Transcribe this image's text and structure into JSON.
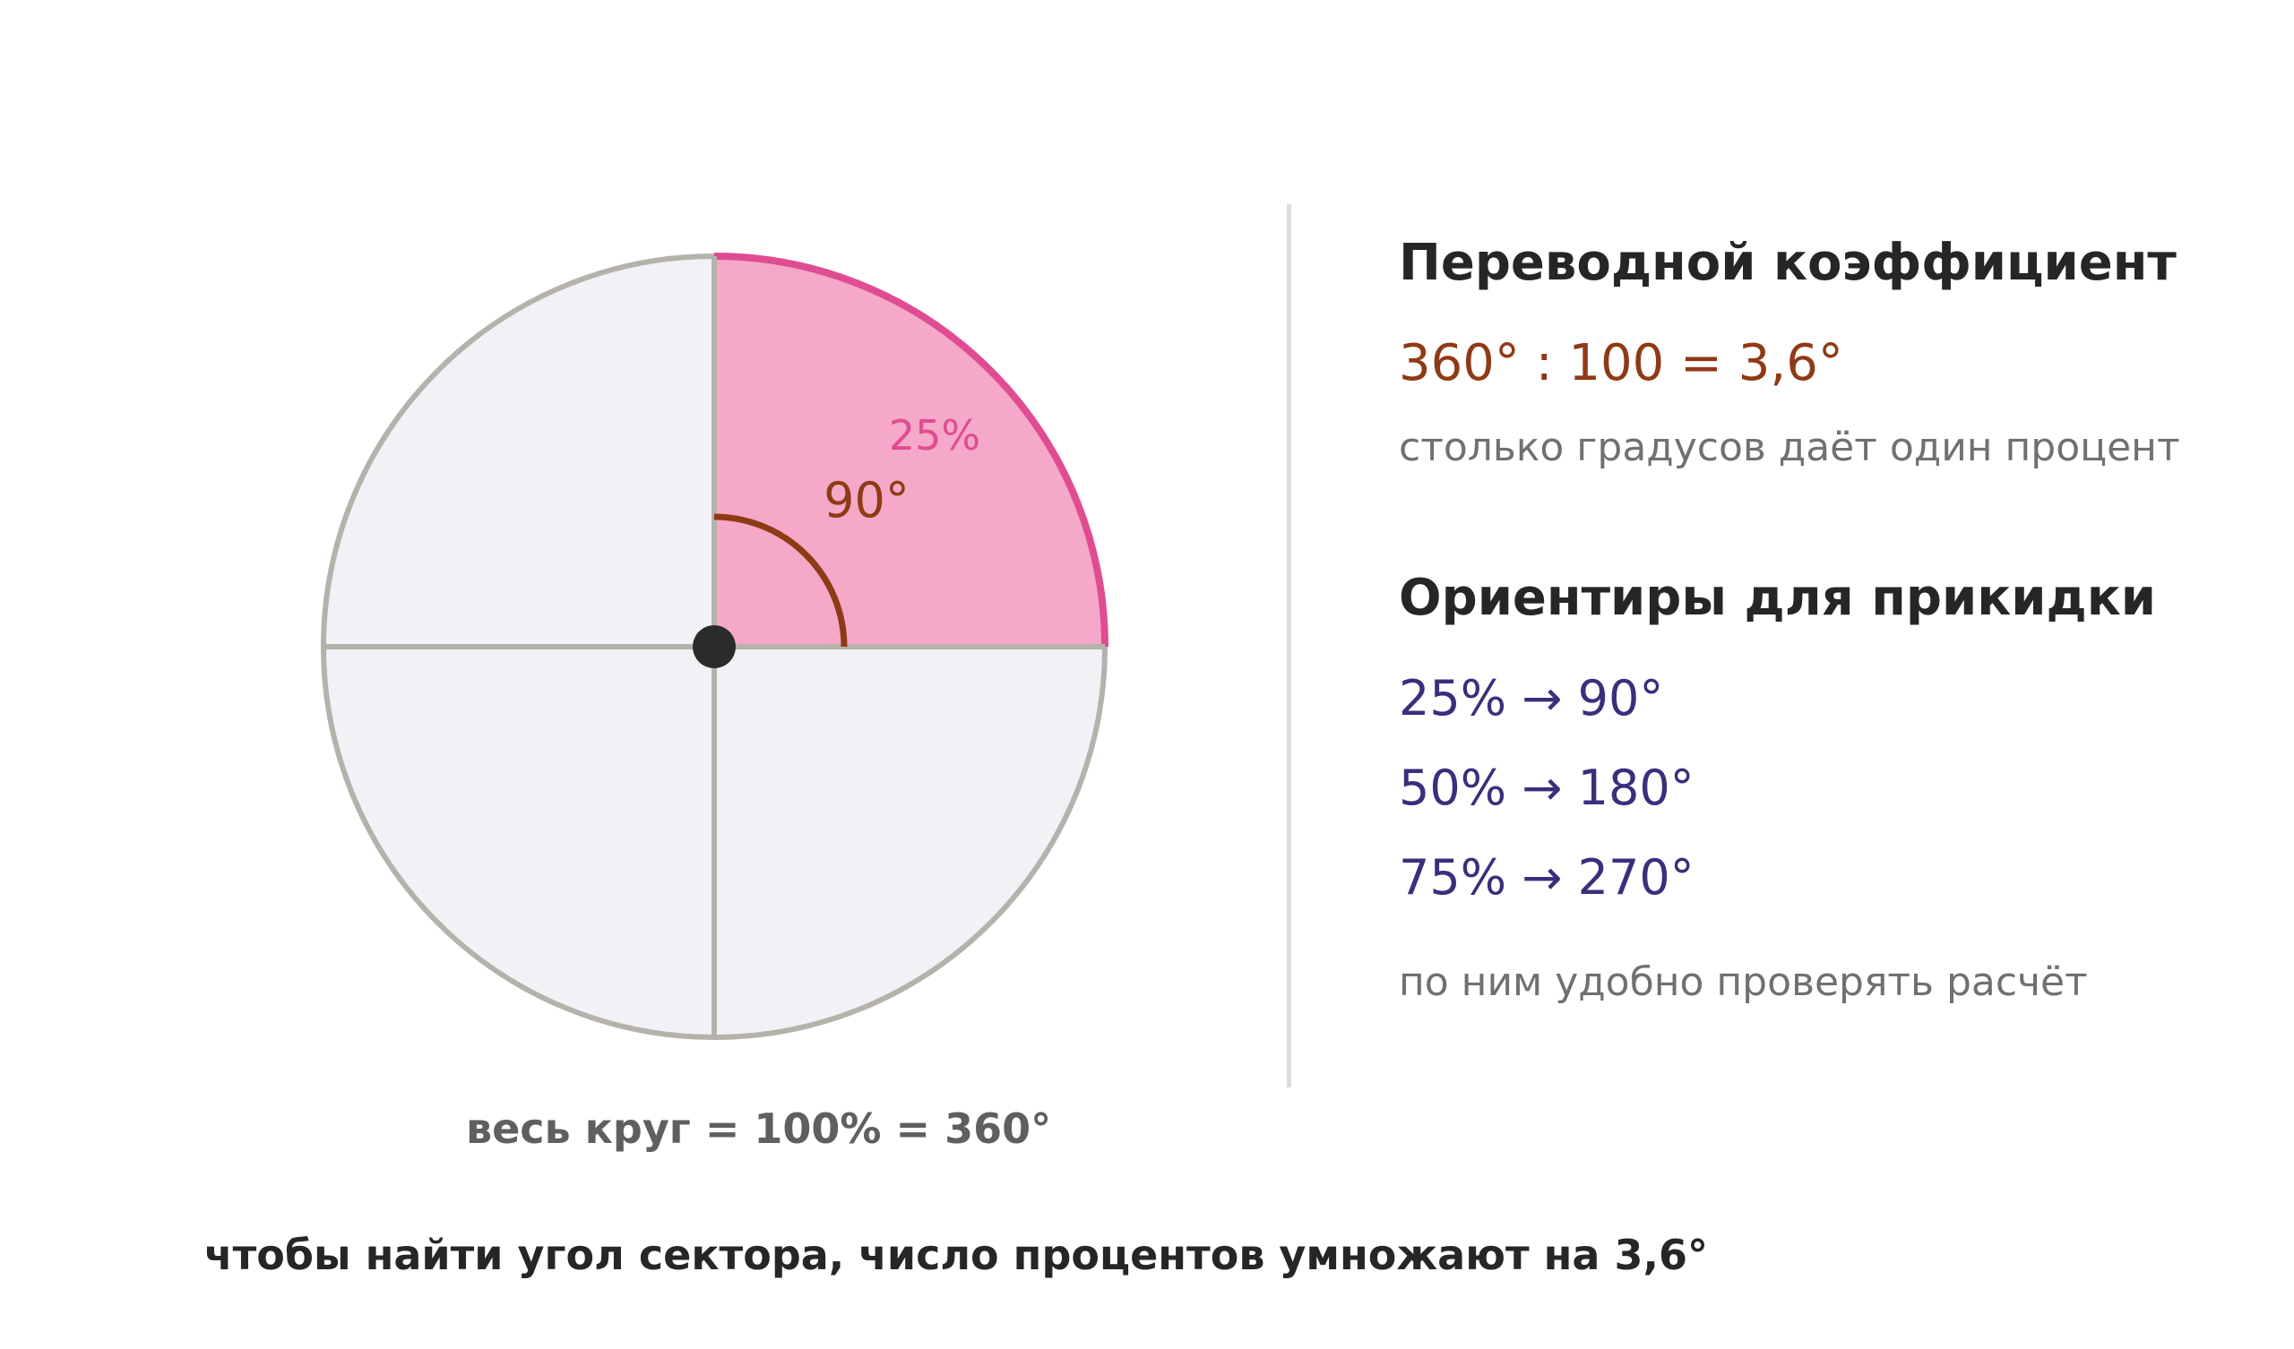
{
  "colors": {
    "circle_fill": "#f2f1f5",
    "circle_stroke": "#b5b2ac",
    "sector_fill": "#f5a8c8",
    "sector_arc": "#e04c92",
    "angle_arc": "#8f3a16",
    "center_dot": "#2b2b2b",
    "percent_label": "#e04c92",
    "angle_label": "#8f3a16",
    "benchmark": "#3c2e7c"
  },
  "diagram": {
    "sector_percent_label": "25%",
    "sector_angle_label": "90°",
    "sector_share": 0.25,
    "sector_angle_deg": 90,
    "caption": "весь круг = 100% = 360°"
  },
  "panel": {
    "coefficient_heading": "Переводной коэффициент",
    "formula": "360° : 100 = 3,6°",
    "formula_note": "столько градусов даёт один процент",
    "benchmarks_heading": "Ориентиры для прикидки",
    "benchmarks": [
      "25% → 90°",
      "50% → 180°",
      "75% → 270°"
    ],
    "benchmarks_note": "по ним удобно проверять расчёт"
  },
  "conclusion": "чтобы найти угол сектора, число процентов умножают на 3,6°"
}
